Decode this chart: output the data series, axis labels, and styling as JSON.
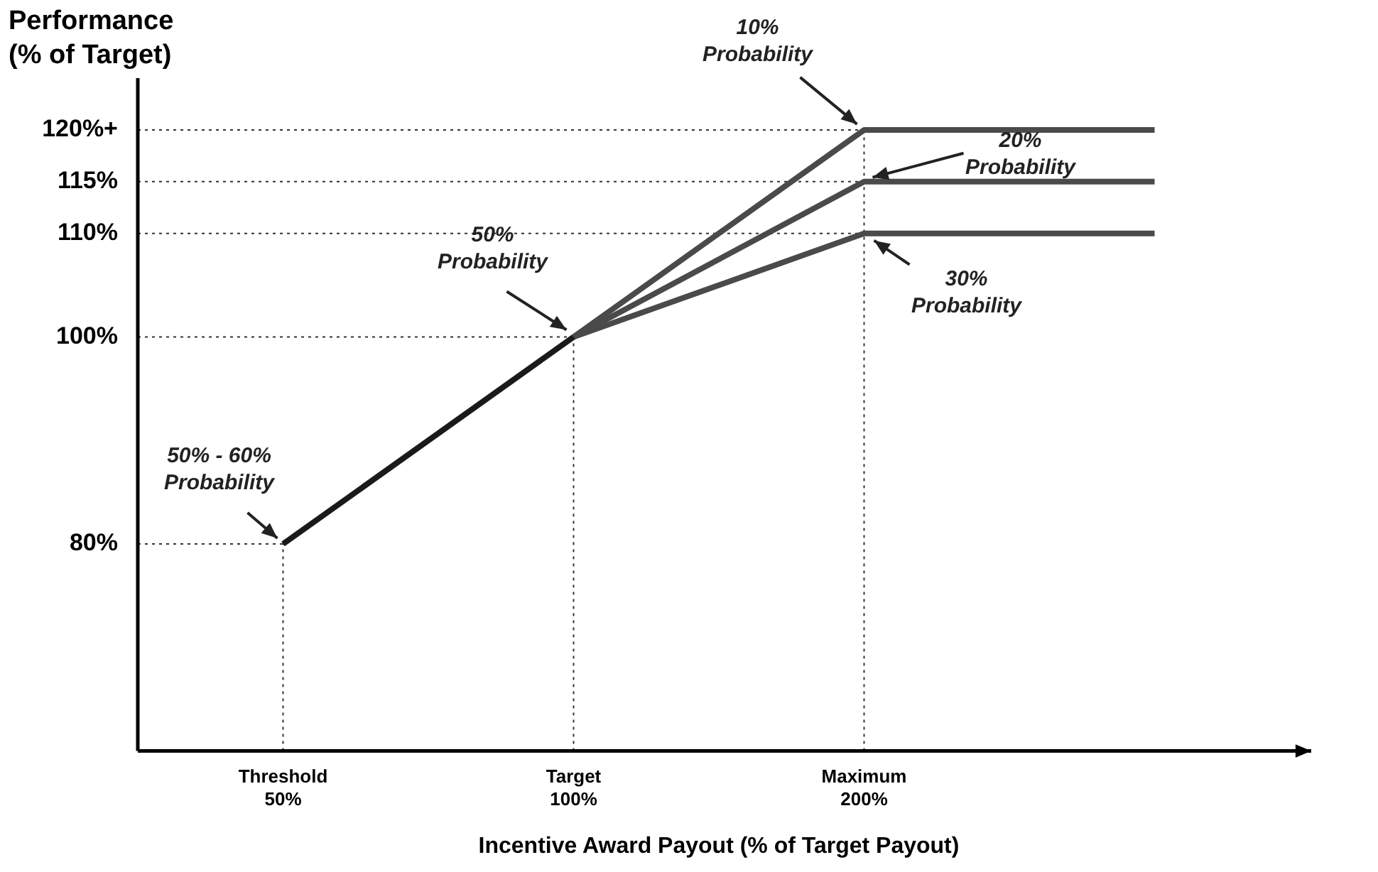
{
  "chart_data": {
    "type": "line",
    "ylabel": "Performance\n(% of Target)",
    "xlabel": "Incentive Award Payout (% of Target Payout)",
    "categories": [
      "Threshold\n50%",
      "Target\n100%",
      "Maximum\n200%",
      null
    ],
    "ylim": [
      60,
      125
    ],
    "yticks": [
      {
        "value": 80,
        "label": "80%"
      },
      {
        "value": 100,
        "label": "100%"
      },
      {
        "value": 110,
        "label": "110%"
      },
      {
        "value": 115,
        "label": "115%"
      },
      {
        "value": 120,
        "label": "120%+"
      }
    ],
    "ref_lines": [
      {
        "axis": "y",
        "value": 80,
        "color": "#333333",
        "line_style": "dotted"
      },
      {
        "axis": "y",
        "value": 100,
        "color": "#333333",
        "line_style": "dotted"
      },
      {
        "axis": "y",
        "value": 110,
        "color": "#333333",
        "line_style": "dotted"
      },
      {
        "axis": "y",
        "value": 115,
        "color": "#333333",
        "line_style": "dotted"
      },
      {
        "axis": "y",
        "value": 120,
        "color": "#333333",
        "line_style": "dotted"
      },
      {
        "axis": "x",
        "value": "Threshold\n50%",
        "color": "#333333",
        "line_style": "dotted"
      },
      {
        "axis": "x",
        "value": "Target\n100%",
        "color": "#333333",
        "line_style": "dotted"
      },
      {
        "axis": "x",
        "value": "Maximum\n200%",
        "color": "#333333",
        "line_style": "dotted"
      }
    ],
    "legend": false,
    "marker": "none",
    "line_style": "solid",
    "series": [
      {
        "color": "#1a1a1a",
        "values": [
          80,
          100,
          null,
          null
        ]
      },
      {
        "color": "#4a4a4a",
        "values": [
          null,
          100,
          120,
          120
        ]
      },
      {
        "color": "#4a4a4a",
        "values": [
          null,
          100,
          115,
          115
        ]
      },
      {
        "color": "#4a4a4a",
        "values": [
          null,
          100,
          110,
          110
        ]
      }
    ],
    "annotations": [
      {
        "text": "50% - 60%\nProbability",
        "x": "Threshold\n50%",
        "y": 80
      },
      {
        "text": "50%\nProbability",
        "x": "Target\n100%",
        "y": 100
      },
      {
        "text": "10%\nProbability",
        "x": "Maximum\n200%",
        "y": 120
      },
      {
        "text": "20%\nProbability",
        "x": "Maximum\n200%",
        "y": 115
      },
      {
        "text": "30%\nProbability",
        "x": "Maximum\n200%",
        "y": 110
      }
    ]
  }
}
